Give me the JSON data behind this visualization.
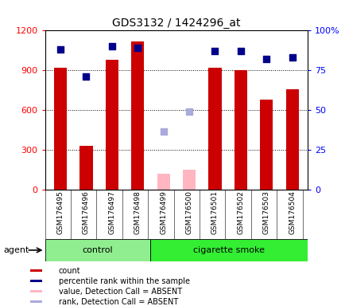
{
  "title": "GDS3132 / 1424296_at",
  "samples": [
    "GSM176495",
    "GSM176496",
    "GSM176497",
    "GSM176498",
    "GSM176499",
    "GSM176500",
    "GSM176501",
    "GSM176502",
    "GSM176503",
    "GSM176504"
  ],
  "count_values": [
    920,
    330,
    980,
    1120,
    null,
    null,
    920,
    900,
    680,
    760
  ],
  "count_absent": [
    null,
    null,
    null,
    null,
    120,
    150,
    null,
    null,
    null,
    null
  ],
  "percentile_values": [
    88,
    71,
    90,
    89,
    null,
    null,
    87,
    87,
    82,
    83
  ],
  "rank_absent": [
    null,
    null,
    null,
    null,
    440,
    590,
    null,
    null,
    null,
    null
  ],
  "ylim_left": [
    0,
    1200
  ],
  "ylim_right": [
    0,
    100
  ],
  "yticks_left": [
    0,
    300,
    600,
    900,
    1200
  ],
  "yticks_right": [
    0,
    25,
    50,
    75,
    100
  ],
  "ytick_labels_right": [
    "0",
    "25",
    "50",
    "75",
    "100%"
  ],
  "bar_color_present": "#CC0000",
  "bar_color_absent": "#FFB6C1",
  "dot_color_present": "#00008B",
  "dot_color_absent": "#AAAADD",
  "legend_items": [
    {
      "label": "count",
      "color": "#CC0000"
    },
    {
      "label": "percentile rank within the sample",
      "color": "#00008B"
    },
    {
      "label": "value, Detection Call = ABSENT",
      "color": "#FFB6C1"
    },
    {
      "label": "rank, Detection Call = ABSENT",
      "color": "#AAAADD"
    }
  ],
  "agent_label": "agent",
  "bg_color": "#DCDCDC",
  "plot_bg": "#FFFFFF",
  "control_color": "#90EE90",
  "smoke_color": "#33EE33",
  "n_control": 4,
  "n_smoke": 6
}
